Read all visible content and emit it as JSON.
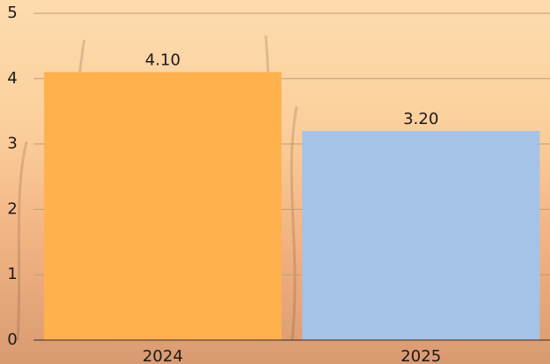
{
  "chart_data": {
    "type": "bar",
    "categories": [
      "2024",
      "2025"
    ],
    "values": [
      4.1,
      3.2
    ],
    "value_labels": [
      "4.10",
      "3.20"
    ],
    "colors": [
      "#ffb14e",
      "#a5c3e8"
    ],
    "ylim": [
      0,
      5
    ],
    "yticks": [
      0,
      1,
      2,
      3,
      4,
      5
    ],
    "grid": true
  }
}
